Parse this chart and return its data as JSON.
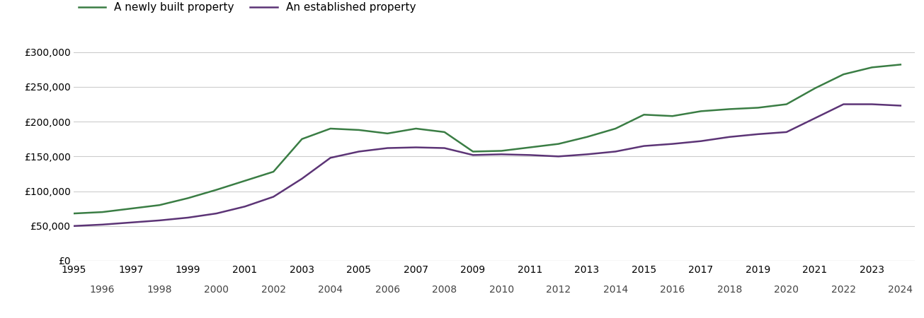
{
  "new_property": {
    "years": [
      1995,
      1996,
      1997,
      1998,
      1999,
      2000,
      2001,
      2002,
      2003,
      2004,
      2005,
      2006,
      2007,
      2008,
      2009,
      2010,
      2011,
      2012,
      2013,
      2014,
      2015,
      2016,
      2017,
      2018,
      2019,
      2020,
      2021,
      2022,
      2023,
      2024
    ],
    "values": [
      68000,
      70000,
      75000,
      80000,
      90000,
      102000,
      115000,
      128000,
      175000,
      190000,
      188000,
      183000,
      190000,
      185000,
      157000,
      158000,
      163000,
      168000,
      178000,
      190000,
      210000,
      208000,
      215000,
      218000,
      220000,
      225000,
      248000,
      268000,
      278000,
      282000
    ]
  },
  "established_property": {
    "years": [
      1995,
      1996,
      1997,
      1998,
      1999,
      2000,
      2001,
      2002,
      2003,
      2004,
      2005,
      2006,
      2007,
      2008,
      2009,
      2010,
      2011,
      2012,
      2013,
      2014,
      2015,
      2016,
      2017,
      2018,
      2019,
      2020,
      2021,
      2022,
      2023,
      2024
    ],
    "values": [
      50000,
      52000,
      55000,
      58000,
      62000,
      68000,
      78000,
      92000,
      118000,
      148000,
      157000,
      162000,
      163000,
      162000,
      152000,
      153000,
      152000,
      150000,
      153000,
      157000,
      165000,
      168000,
      172000,
      178000,
      182000,
      185000,
      205000,
      225000,
      225000,
      223000
    ]
  },
  "new_color": "#3a7d44",
  "established_color": "#5c3476",
  "new_label": "A newly built property",
  "established_label": "An established property",
  "ylim": [
    0,
    320000
  ],
  "yticks": [
    0,
    50000,
    100000,
    150000,
    200000,
    250000,
    300000
  ],
  "xlim": [
    1995,
    2024.5
  ],
  "xticks_odd": [
    1995,
    1997,
    1999,
    2001,
    2003,
    2005,
    2007,
    2009,
    2011,
    2013,
    2015,
    2017,
    2019,
    2021,
    2023
  ],
  "xticks_even": [
    1996,
    1998,
    2000,
    2002,
    2004,
    2006,
    2008,
    2010,
    2012,
    2014,
    2016,
    2018,
    2020,
    2022,
    2024
  ],
  "background_color": "#ffffff",
  "grid_color": "#cccccc",
  "line_width": 1.8,
  "tick_label_fontsize": 10,
  "legend_fontsize": 11
}
